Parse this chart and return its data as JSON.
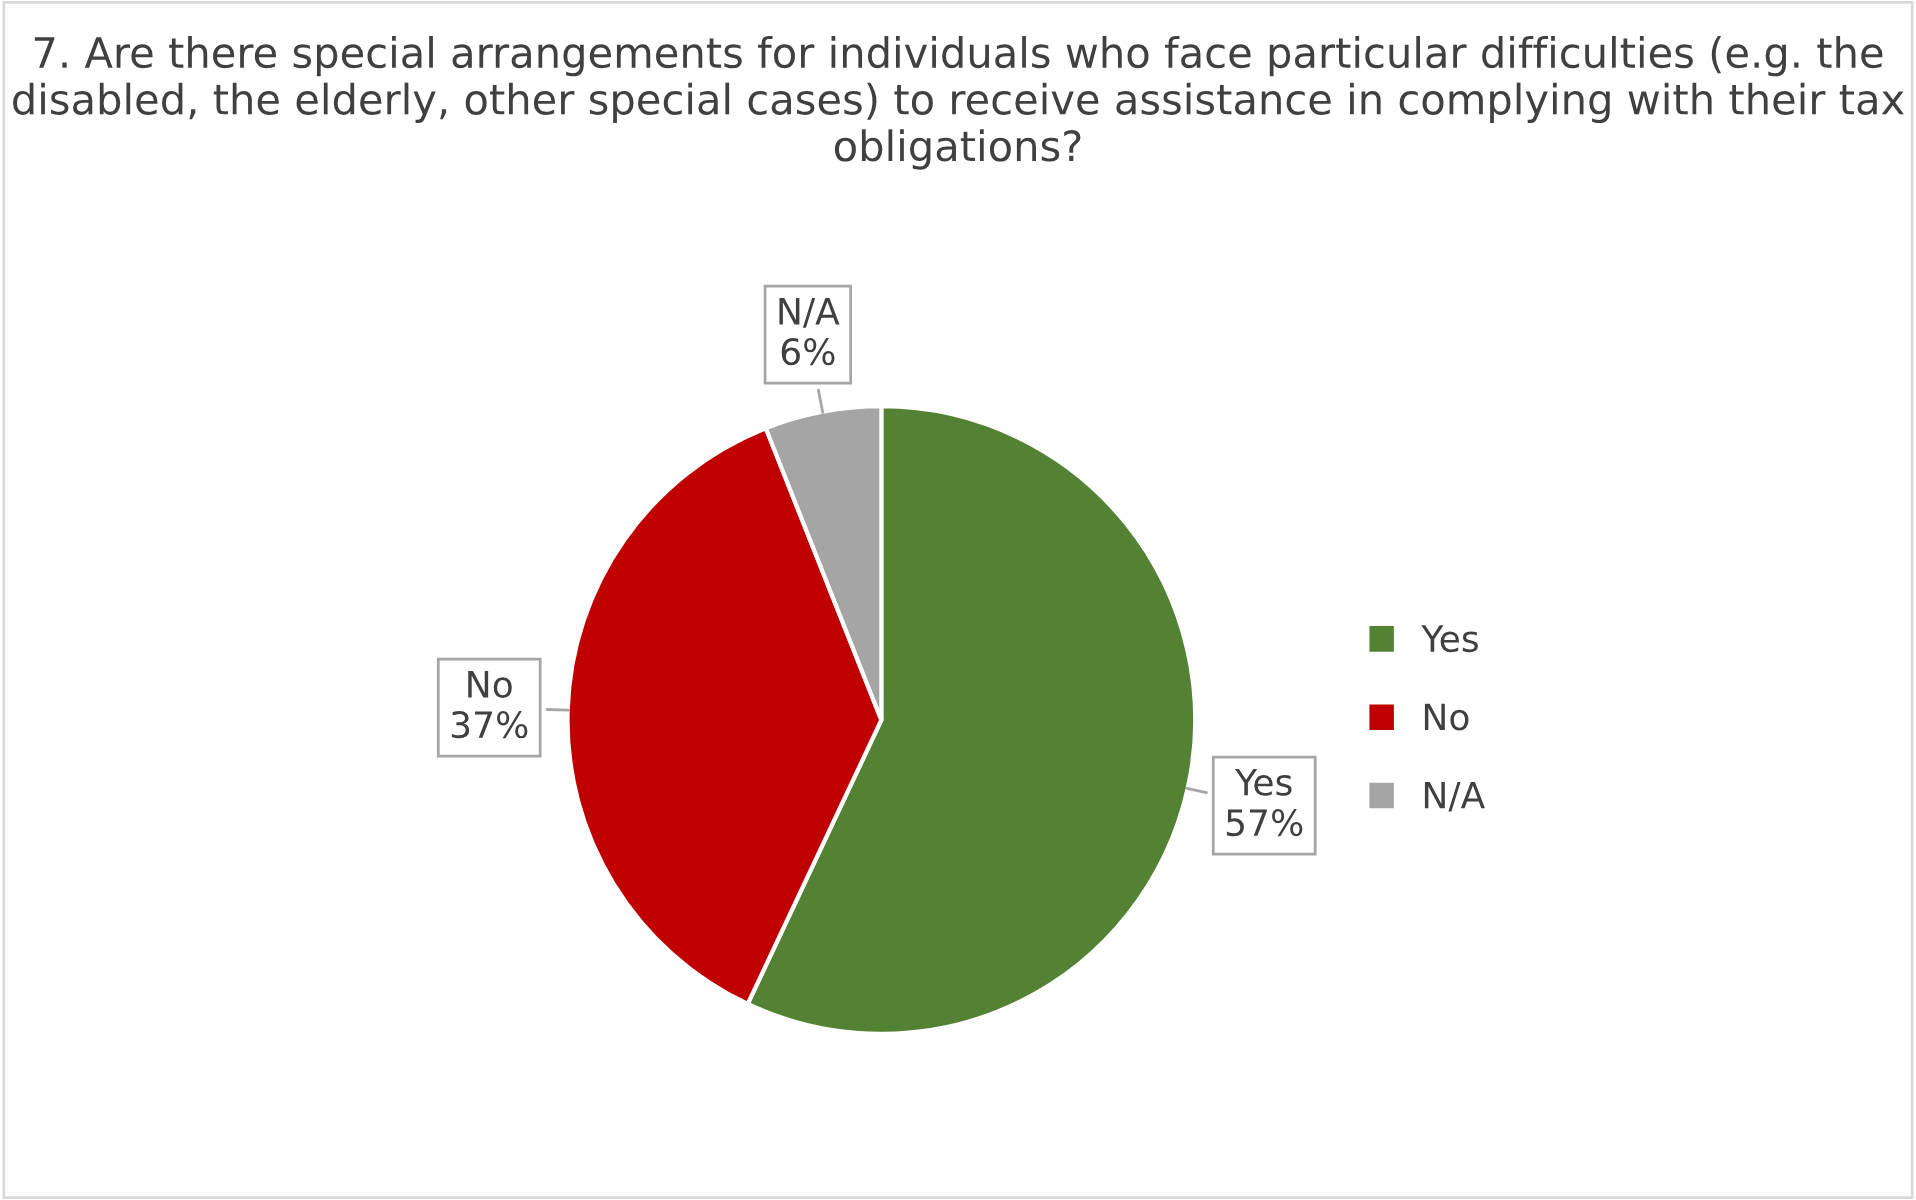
{
  "chart_data": {
    "type": "pie",
    "title": "7. Are there special arrangements for individuals who face particular difficulties (e.g. the disabled, the elderly, other special cases) to receive assistance in complying with their tax obligations?",
    "categories": [
      "Yes",
      "No",
      "N/A"
    ],
    "values": [
      57,
      37,
      6
    ],
    "colors": [
      "#548235",
      "#c00000",
      "#a5a5a5"
    ],
    "value_labels": [
      "57%",
      "37%",
      "6%"
    ],
    "legend": "right"
  }
}
